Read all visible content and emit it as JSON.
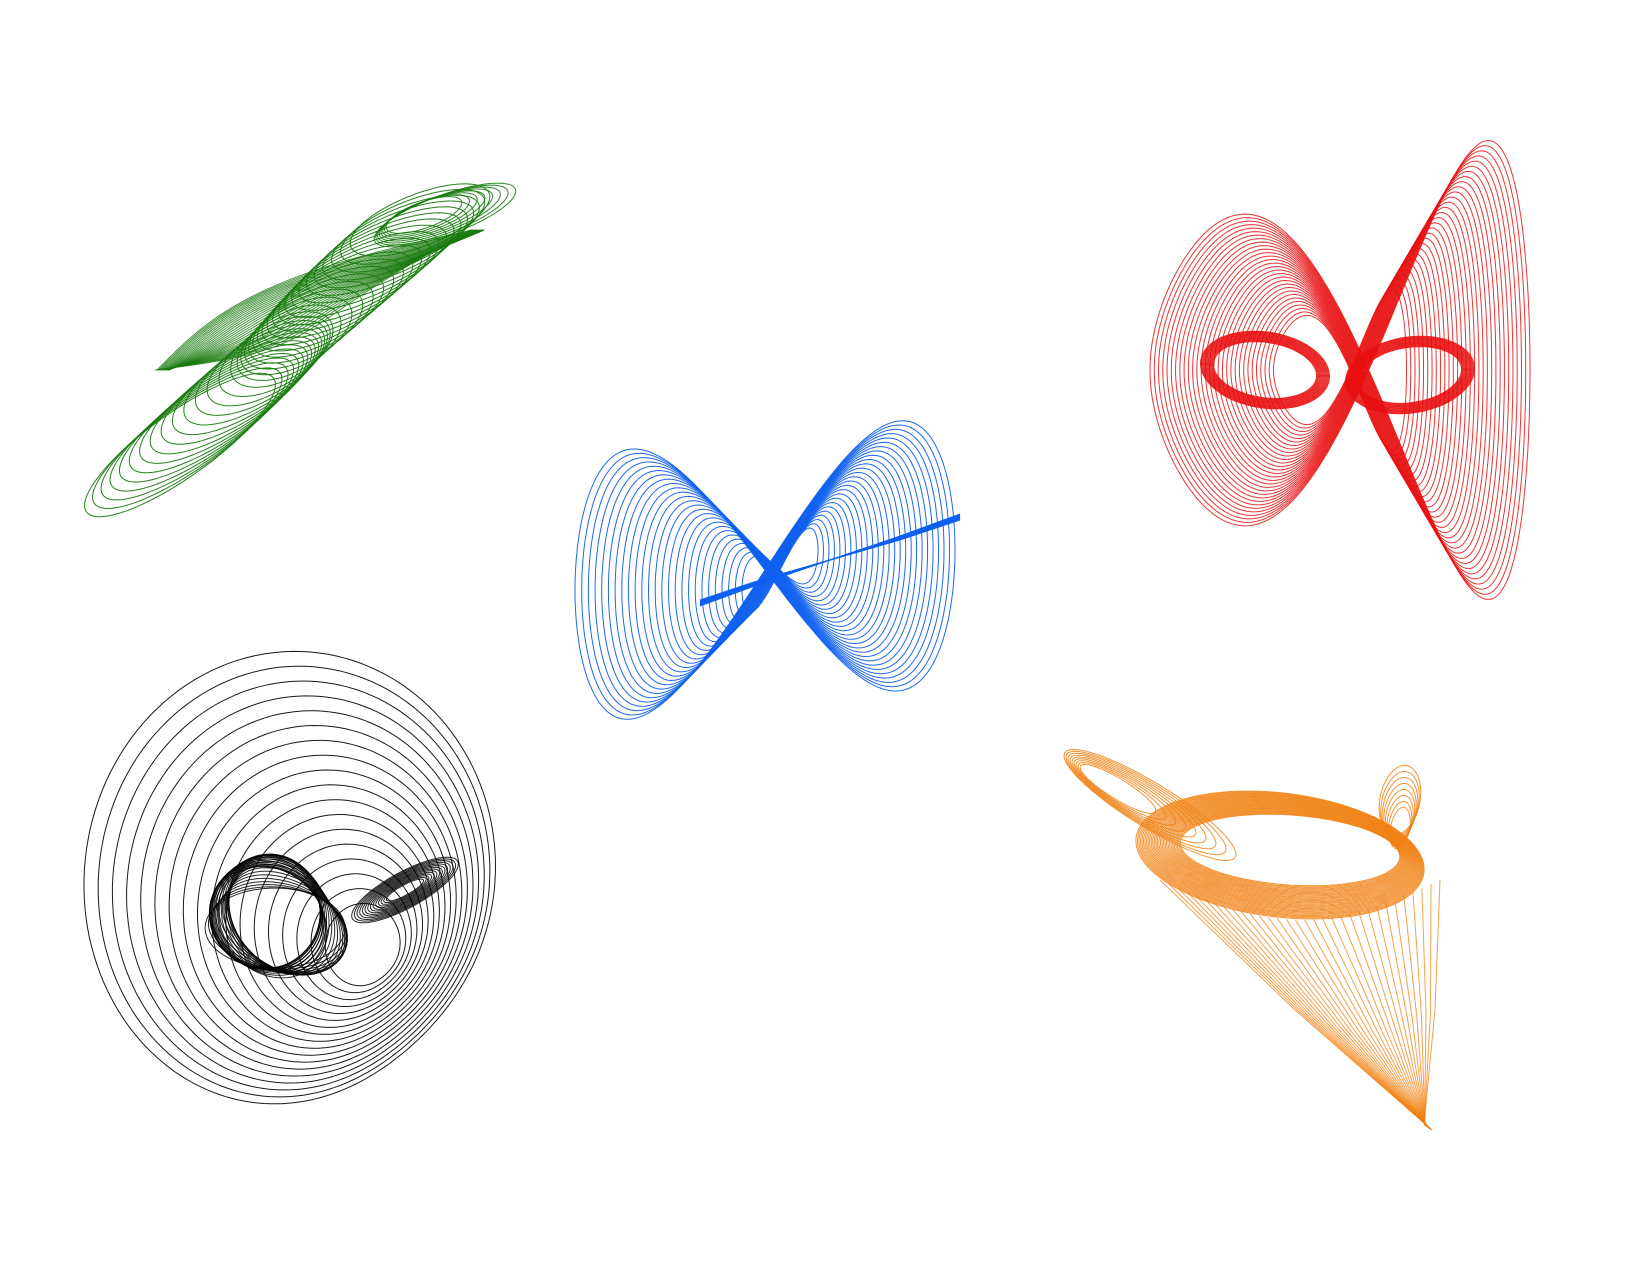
{
  "background": "#ffffff",
  "figures": [
    {
      "id": "green-twisted-ribbon",
      "color": "#1a7a10"
    },
    {
      "id": "blue-bowtie-ribbon",
      "color": "#1060f0"
    },
    {
      "id": "red-mask-ribbon",
      "color": "#e81010"
    },
    {
      "id": "black-cardioid-ribbon",
      "color": "#000000"
    },
    {
      "id": "orange-funnel-ribbon",
      "color": "#f08010"
    }
  ]
}
